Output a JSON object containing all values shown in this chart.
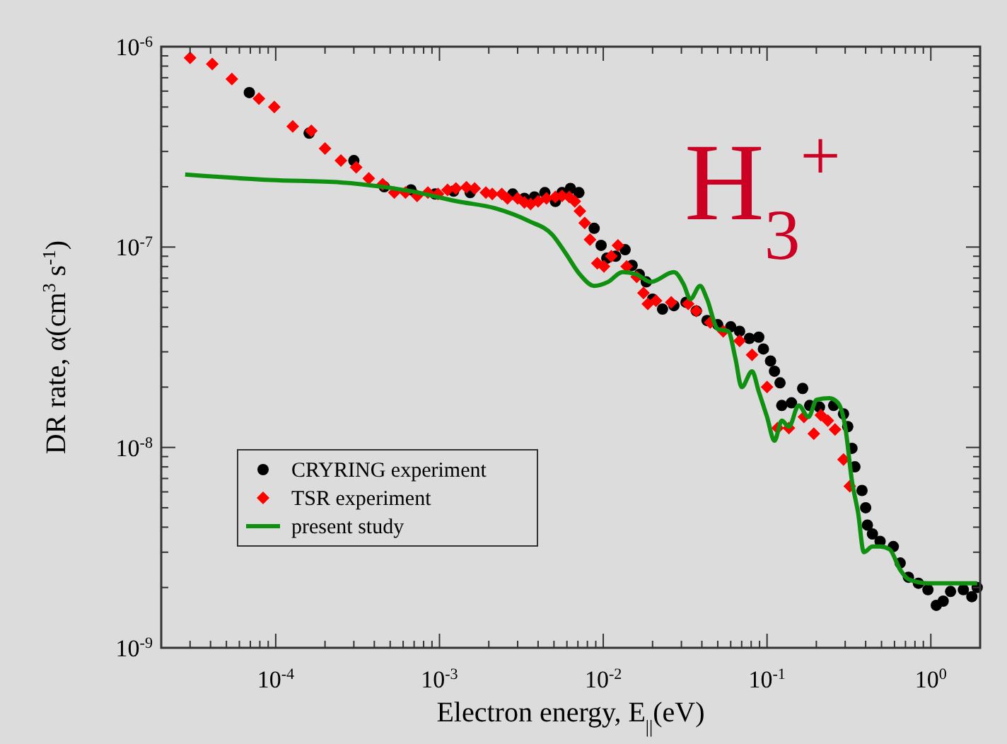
{
  "chart_data": {
    "type": "scatter",
    "xlabel": "Electron energy, E$_{||}$(eV)",
    "ylabel": "DR rate, α(cm$^{3}$ s$^{-1}$)",
    "annotations": [
      "H$_{3}$$^{+}$"
    ],
    "log": "xy",
    "grid": false,
    "legend": "bottom left",
    "xlim": [
      2e-05,
      2
    ],
    "ylim": [
      1e-09,
      1e-06
    ],
    "xticks": [
      {
        "value": 3e-05,
        "label": null
      },
      {
        "value": 4e-05,
        "label": null
      },
      {
        "value": 5e-05,
        "label": null
      },
      {
        "value": 6e-05,
        "label": null
      },
      {
        "value": 7e-05,
        "label": null
      },
      {
        "value": 8e-05,
        "label": null
      },
      {
        "value": 9e-05,
        "label": null
      },
      {
        "value": 0.0001,
        "label": "10$^{-4}$"
      },
      {
        "value": 0.0002,
        "label": null
      },
      {
        "value": 0.0003,
        "label": null
      },
      {
        "value": 0.0004,
        "label": null
      },
      {
        "value": 0.0005,
        "label": null
      },
      {
        "value": 0.0006,
        "label": null
      },
      {
        "value": 0.0007,
        "label": null
      },
      {
        "value": 0.0008,
        "label": null
      },
      {
        "value": 0.0009,
        "label": null
      },
      {
        "value": 0.001,
        "label": "10$^{-3}$"
      },
      {
        "value": 0.002,
        "label": null
      },
      {
        "value": 0.003,
        "label": null
      },
      {
        "value": 0.004,
        "label": null
      },
      {
        "value": 0.005,
        "label": null
      },
      {
        "value": 0.006,
        "label": null
      },
      {
        "value": 0.007,
        "label": null
      },
      {
        "value": 0.008,
        "label": null
      },
      {
        "value": 0.009,
        "label": null
      },
      {
        "value": 0.01,
        "label": "10$^{-2}$"
      },
      {
        "value": 0.02,
        "label": null
      },
      {
        "value": 0.03,
        "label": null
      },
      {
        "value": 0.04,
        "label": null
      },
      {
        "value": 0.05,
        "label": null
      },
      {
        "value": 0.06,
        "label": null
      },
      {
        "value": 0.07,
        "label": null
      },
      {
        "value": 0.08,
        "label": null
      },
      {
        "value": 0.09,
        "label": null
      },
      {
        "value": 0.1,
        "label": "10$^{-1}$"
      },
      {
        "value": 0.2,
        "label": null
      },
      {
        "value": 0.3,
        "label": null
      },
      {
        "value": 0.4,
        "label": null
      },
      {
        "value": 0.5,
        "label": null
      },
      {
        "value": 0.6,
        "label": null
      },
      {
        "value": 0.7,
        "label": null
      },
      {
        "value": 0.8,
        "label": null
      },
      {
        "value": 0.9,
        "label": null
      },
      {
        "value": 1,
        "label": "10$^{0}$"
      }
    ],
    "yticks": [
      {
        "value": 1e-09,
        "label": "10$^{-9}$"
      },
      {
        "value": 2e-09,
        "label": null
      },
      {
        "value": 3e-09,
        "label": null
      },
      {
        "value": 4e-09,
        "label": null
      },
      {
        "value": 5e-09,
        "label": null
      },
      {
        "value": 6e-09,
        "label": null
      },
      {
        "value": 7e-09,
        "label": null
      },
      {
        "value": 8e-09,
        "label": null
      },
      {
        "value": 9e-09,
        "label": null
      },
      {
        "value": 1e-08,
        "label": "10$^{-8}$"
      },
      {
        "value": 2e-08,
        "label": null
      },
      {
        "value": 3e-08,
        "label": null
      },
      {
        "value": 4e-08,
        "label": null
      },
      {
        "value": 5e-08,
        "label": null
      },
      {
        "value": 6e-08,
        "label": null
      },
      {
        "value": 7e-08,
        "label": null
      },
      {
        "value": 8e-08,
        "label": null
      },
      {
        "value": 9e-08,
        "label": null
      },
      {
        "value": 1e-07,
        "label": "10$^{-7}$"
      },
      {
        "value": 2e-07,
        "label": null
      },
      {
        "value": 3e-07,
        "label": null
      },
      {
        "value": 4e-07,
        "label": null
      },
      {
        "value": 5e-07,
        "label": null
      },
      {
        "value": 6e-07,
        "label": null
      },
      {
        "value": 7e-07,
        "label": null
      },
      {
        "value": 8e-07,
        "label": null
      },
      {
        "value": 9e-07,
        "label": null
      },
      {
        "value": 1e-06,
        "label": "10$^{-6}$"
      }
    ],
    "series": [
      {
        "name": "CRYRING experiment",
        "marker": "circle",
        "color": "#000000",
        "x": [
          6.9e-05,
          0.00016,
          0.0003,
          0.00046,
          0.00067,
          0.00094,
          0.00122,
          0.00154,
          0.0028,
          0.0033,
          0.0038,
          0.0044,
          0.0051,
          0.0056,
          0.0063,
          0.0071,
          0.0088,
          0.0097,
          0.0105,
          0.0119,
          0.0136,
          0.015,
          0.0166,
          0.0183,
          0.02,
          0.023,
          0.027,
          0.032,
          0.037,
          0.043,
          0.05,
          0.06,
          0.068,
          0.078,
          0.089,
          0.095,
          0.105,
          0.111,
          0.12,
          0.123,
          0.141,
          0.165,
          0.182,
          0.209,
          0.255,
          0.293,
          0.311,
          0.33,
          0.344,
          0.38,
          0.4,
          0.41,
          0.44,
          0.49,
          0.59,
          0.65,
          0.73,
          0.84,
          0.96,
          1.08,
          1.19,
          1.32,
          1.58,
          1.78,
          1.92
        ],
        "values": [
          5.9e-07,
          3.7e-07,
          2.7e-07,
          2e-07,
          1.93e-07,
          1.84e-07,
          1.9e-07,
          1.87e-07,
          1.84e-07,
          1.75e-07,
          1.78e-07,
          1.87e-07,
          1.69e-07,
          1.87e-07,
          1.96e-07,
          1.87e-07,
          1.24e-07,
          1.02e-07,
          8.8e-08,
          9e-08,
          9.7e-08,
          8.1e-08,
          7.3e-08,
          6.7e-08,
          5.5e-08,
          4.9e-08,
          5.1e-08,
          5.3e-08,
          4.8e-08,
          4.3e-08,
          4.1e-08,
          4e-08,
          3.8e-08,
          3.5e-08,
          3.55e-08,
          3.1e-08,
          2.7e-08,
          2.4e-08,
          2.1e-08,
          1.62e-08,
          1.67e-08,
          1.97e-08,
          1.62e-08,
          1.59e-08,
          1.62e-08,
          1.47e-08,
          1.27e-08,
          9.9e-09,
          8e-09,
          6.1e-09,
          5e-09,
          4.1e-09,
          3.7e-09,
          3.4e-09,
          3.2e-09,
          2.65e-09,
          2.25e-09,
          2.1e-09,
          1.95e-09,
          1.63e-09,
          1.71e-09,
          1.91e-09,
          1.95e-09,
          1.8e-09,
          2e-09
        ]
      },
      {
        "name": "TSR experiment",
        "marker": "diamond",
        "color": "#ff0000",
        "x": [
          3e-05,
          4.1e-05,
          5.4e-05,
          7.9e-05,
          9.8e-05,
          0.000127,
          0.000165,
          0.0002,
          0.00025,
          0.00031,
          0.00037,
          0.00045,
          0.00053,
          0.00062,
          0.00073,
          0.00085,
          0.00098,
          0.00112,
          0.00126,
          0.00146,
          0.00164,
          0.00192,
          0.0021,
          0.0024,
          0.0026,
          0.003,
          0.0033,
          0.0036,
          0.004,
          0.0045,
          0.0051,
          0.0056,
          0.0062,
          0.0067,
          0.0072,
          0.0077,
          0.0083,
          0.0092,
          0.0101,
          0.0112,
          0.0123,
          0.0139,
          0.016,
          0.0176,
          0.0187,
          0.021,
          0.026,
          0.033,
          0.037,
          0.045,
          0.054,
          0.068,
          0.081,
          0.1,
          0.116,
          0.136,
          0.168,
          0.193,
          0.213,
          0.235,
          0.26,
          0.293,
          0.32
        ],
        "values": [
          8.8e-07,
          8.2e-07,
          6.9e-07,
          5.5e-07,
          5e-07,
          4e-07,
          3.8e-07,
          3.1e-07,
          2.7e-07,
          2.5e-07,
          2.2e-07,
          2.06e-07,
          1.87e-07,
          1.87e-07,
          1.8e-07,
          1.87e-07,
          1.84e-07,
          1.93e-07,
          1.96e-07,
          1.99e-07,
          1.96e-07,
          1.87e-07,
          1.84e-07,
          1.84e-07,
          1.75e-07,
          1.75e-07,
          1.67e-07,
          1.64e-07,
          1.69e-07,
          1.75e-07,
          1.78e-07,
          1.8e-07,
          1.78e-07,
          1.69e-07,
          1.51e-07,
          1.32e-07,
          1.09e-07,
          8.3e-08,
          8e-08,
          9e-08,
          1.02e-07,
          8e-08,
          7.1e-08,
          5.9e-08,
          5.2e-08,
          5.4e-08,
          5.3e-08,
          5.2e-08,
          4.8e-08,
          4.2e-08,
          3.8e-08,
          3.4e-08,
          2.9e-08,
          2e-08,
          1.25e-08,
          1.25e-08,
          1.42e-08,
          1.17e-08,
          1.45e-08,
          1.36e-08,
          1.23e-08,
          8.7e-09,
          6.4e-09
        ]
      },
      {
        "name": "present study",
        "type": "line",
        "marker": "none",
        "line_style": "solid",
        "color": "#109010",
        "x": [
          2.8e-05,
          9.3e-05,
          0.00025,
          0.00067,
          0.00129,
          0.0022,
          0.0035,
          0.0049,
          0.0059,
          0.0072,
          0.0088,
          0.0107,
          0.0131,
          0.016,
          0.0195,
          0.027,
          0.031,
          0.034,
          0.039,
          0.043,
          0.05,
          0.058,
          0.064,
          0.07,
          0.081,
          0.089,
          0.1,
          0.111,
          0.123,
          0.136,
          0.156,
          0.179,
          0.201,
          0.24,
          0.271,
          0.3,
          0.33,
          0.36,
          0.39,
          0.44,
          0.49,
          0.56,
          0.65,
          0.73,
          0.96,
          1.32,
          1.92
        ],
        "values": [
          2.3e-07,
          2.16e-07,
          2.1e-07,
          1.9e-07,
          1.69e-07,
          1.56e-07,
          1.35e-07,
          1.15e-07,
          9.3e-08,
          7.3e-08,
          6.4e-08,
          6.7e-08,
          7.5e-08,
          7.3e-08,
          6.7e-08,
          7.5e-08,
          6.5e-08,
          5.5e-08,
          6.4e-08,
          5.5e-08,
          3.9e-08,
          3.8e-08,
          2.8e-08,
          2e-08,
          2.4e-08,
          1.9e-08,
          1.42e-08,
          1.08e-08,
          1.36e-08,
          1.27e-08,
          1.62e-08,
          1.42e-08,
          1.73e-08,
          1.76e-08,
          1.67e-08,
          1.27e-08,
          6.8e-09,
          4.7e-09,
          3e-09,
          3.2e-09,
          3.2e-09,
          3.1e-09,
          2.45e-09,
          2.2e-09,
          2.1e-09,
          2.1e-09,
          2.1e-09
        ]
      }
    ]
  }
}
